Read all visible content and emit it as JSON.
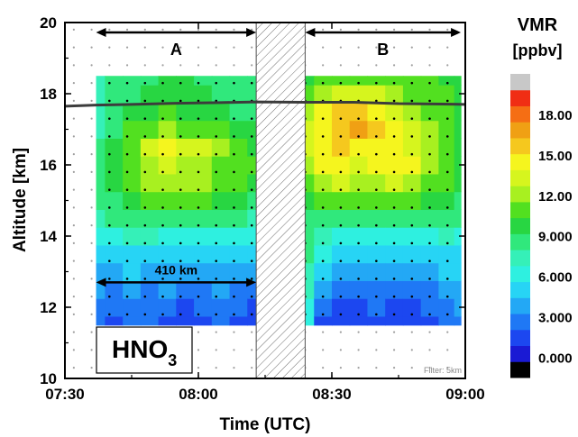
{
  "chart_data": {
    "type": "heatmap",
    "title": "",
    "xlabel": "Time (UTC)",
    "ylabel": "Altitude [km]",
    "xlim": [
      "07:30",
      "09:00"
    ],
    "ylim": [
      10,
      20
    ],
    "x_ticks": [
      "07:30",
      "08:00",
      "08:30",
      "09:00"
    ],
    "y_ticks": [
      "10",
      "12",
      "14",
      "16",
      "18",
      "20"
    ],
    "colorbar": {
      "title": "VMR",
      "unit": "[ppbv]",
      "tick_labels": [
        "18.00",
        "15.00",
        "12.00",
        "9.000",
        "6.000",
        "3.000",
        "0.000"
      ],
      "tick_values": [
        18,
        15,
        12,
        9,
        6,
        3,
        0
      ],
      "colors": [
        "#000000",
        "#1a1ad4",
        "#1c47f0",
        "#1f78f5",
        "#23a8f5",
        "#27d4f5",
        "#2ef0e0",
        "#35f0b8",
        "#30e87c",
        "#28d642",
        "#52e020",
        "#a8f020",
        "#d6f51e",
        "#f5f51e",
        "#f5c81e",
        "#f0a014",
        "#f56e14",
        "#f02e14",
        "#c8c8c8"
      ],
      "range": [
        -1.5,
        21
      ]
    },
    "segments": [
      {
        "label": "A",
        "start": "07:37",
        "end": "08:13"
      },
      {
        "label": "B",
        "start": "08:24",
        "end": "08:59"
      }
    ],
    "no_data_interval": {
      "start": "08:13",
      "end": "08:24"
    },
    "distance_label": "410 km",
    "distance_span": {
      "start": "07:37",
      "end": "08:13",
      "altitude_km": 12.7
    },
    "species_label": {
      "main": "HNO",
      "subscript": "3"
    },
    "filter_note": "Filter: 5km",
    "flight_altitude_km": {
      "time": [
        "07:30",
        "07:37",
        "07:45",
        "07:55",
        "08:05",
        "08:13",
        "08:24",
        "08:35",
        "08:45",
        "08:55",
        "09:00"
      ],
      "altitude": [
        17.65,
        17.68,
        17.7,
        17.73,
        17.75,
        17.77,
        17.76,
        17.76,
        17.72,
        17.71,
        17.7
      ]
    },
    "retrieval_altitudes_km": [
      11.5,
      12.0,
      12.5,
      13.0,
      13.5,
      14.0,
      14.5,
      15.0,
      15.5,
      16.0,
      16.5,
      17.0,
      17.5,
      18.0,
      18.5
    ],
    "vmr_grid": {
      "A": {
        "time": [
          "07:37",
          "07:41",
          "07:45",
          "07:49",
          "07:53",
          "07:57",
          "08:01",
          "08:05",
          "08:09",
          "08:13"
        ],
        "rows": [
          [
            2.5,
            2,
            2.5,
            3,
            2,
            1.5,
            2,
            2.5,
            2,
            1.5
          ],
          [
            3,
            2.5,
            3,
            2.5,
            2.5,
            2,
            2.5,
            3,
            2.5,
            2
          ],
          [
            3.5,
            3,
            3.5,
            3,
            3.5,
            3,
            3,
            3.5,
            3,
            2.5
          ],
          [
            4,
            4,
            4.5,
            4,
            4,
            4,
            3.5,
            4,
            4,
            3.5
          ],
          [
            5,
            5,
            5,
            5.5,
            5,
            5,
            5,
            5,
            4.5,
            4.5
          ],
          [
            6.5,
            6.5,
            7,
            7,
            6.5,
            6.5,
            6.5,
            6.5,
            6,
            6
          ],
          [
            7.5,
            8,
            8.5,
            8.5,
            9,
            9,
            8.5,
            8,
            8,
            7.5
          ],
          [
            8,
            9,
            10,
            10.5,
            10.5,
            11,
            10.5,
            10,
            9.5,
            9
          ],
          [
            8.5,
            9.5,
            11,
            12,
            12.5,
            12,
            12,
            11,
            10.5,
            10
          ],
          [
            8.5,
            10,
            11.5,
            12.5,
            13,
            12.5,
            12.5,
            11.5,
            11,
            10.5
          ],
          [
            8,
            9.5,
            11.5,
            13,
            14,
            13,
            13,
            12,
            11,
            10
          ],
          [
            7.5,
            9,
            10.5,
            11.5,
            12,
            11.5,
            11.5,
            11,
            10,
            9.5
          ],
          [
            7,
            8.5,
            9.5,
            10,
            10.5,
            10,
            10,
            9.5,
            9,
            8.5
          ],
          [
            7,
            8.5,
            9,
            9.5,
            10,
            10,
            9.5,
            9,
            8.5,
            8
          ],
          [
            7,
            8,
            8.5,
            9,
            9.5,
            9.5,
            9,
            8.5,
            8,
            8
          ]
        ]
      },
      "B": {
        "time": [
          "08:24",
          "08:28",
          "08:32",
          "08:36",
          "08:40",
          "08:44",
          "08:48",
          "08:52",
          "08:56",
          "08:59"
        ],
        "rows": [
          [
            6,
            2,
            1.5,
            1.5,
            2,
            2,
            1.5,
            2,
            2.5,
            3
          ],
          [
            6.5,
            2.5,
            2,
            2,
            2.5,
            2,
            2,
            2.5,
            3,
            3.5
          ],
          [
            7,
            3.5,
            3,
            2.5,
            2.5,
            2.5,
            2.5,
            3,
            3.5,
            4
          ],
          [
            7.5,
            4.5,
            4,
            3.5,
            3.5,
            3.5,
            3.5,
            4,
            4.5,
            4.5
          ],
          [
            8,
            6,
            5,
            4.5,
            4.5,
            4.5,
            4.5,
            5,
            5.5,
            5.5
          ],
          [
            8.5,
            7.5,
            6.5,
            6,
            6,
            6,
            6,
            6.5,
            7,
            6.5
          ],
          [
            9,
            9,
            8.5,
            8,
            8,
            8,
            8,
            8.5,
            8.5,
            8
          ],
          [
            10,
            10.5,
            10.5,
            10.5,
            10.5,
            10.5,
            10.5,
            10,
            9.5,
            9
          ],
          [
            11,
            12,
            13,
            12.5,
            12.5,
            13,
            12.5,
            11.5,
            10.5,
            9.5
          ],
          [
            12,
            14,
            14.5,
            13.5,
            14,
            15,
            14,
            12.5,
            11,
            10
          ],
          [
            13,
            15,
            15.5,
            15,
            14.5,
            14,
            13.5,
            12.5,
            11,
            10
          ],
          [
            13,
            15,
            16,
            16.5,
            15.5,
            14,
            13,
            12,
            11,
            10
          ],
          [
            12,
            14,
            15.5,
            16,
            15,
            13.5,
            12.5,
            11.5,
            10.5,
            10
          ],
          [
            11,
            12,
            13,
            13.5,
            13,
            12.5,
            11.5,
            11,
            10.5,
            10
          ],
          [
            10,
            11,
            11.5,
            11.5,
            11.5,
            11.5,
            11,
            10.5,
            10,
            10
          ]
        ]
      }
    },
    "grid_points": {
      "retrieved_dot_color": "#000000",
      "unretrieved_dot_color": "#a0a0a0"
    }
  }
}
